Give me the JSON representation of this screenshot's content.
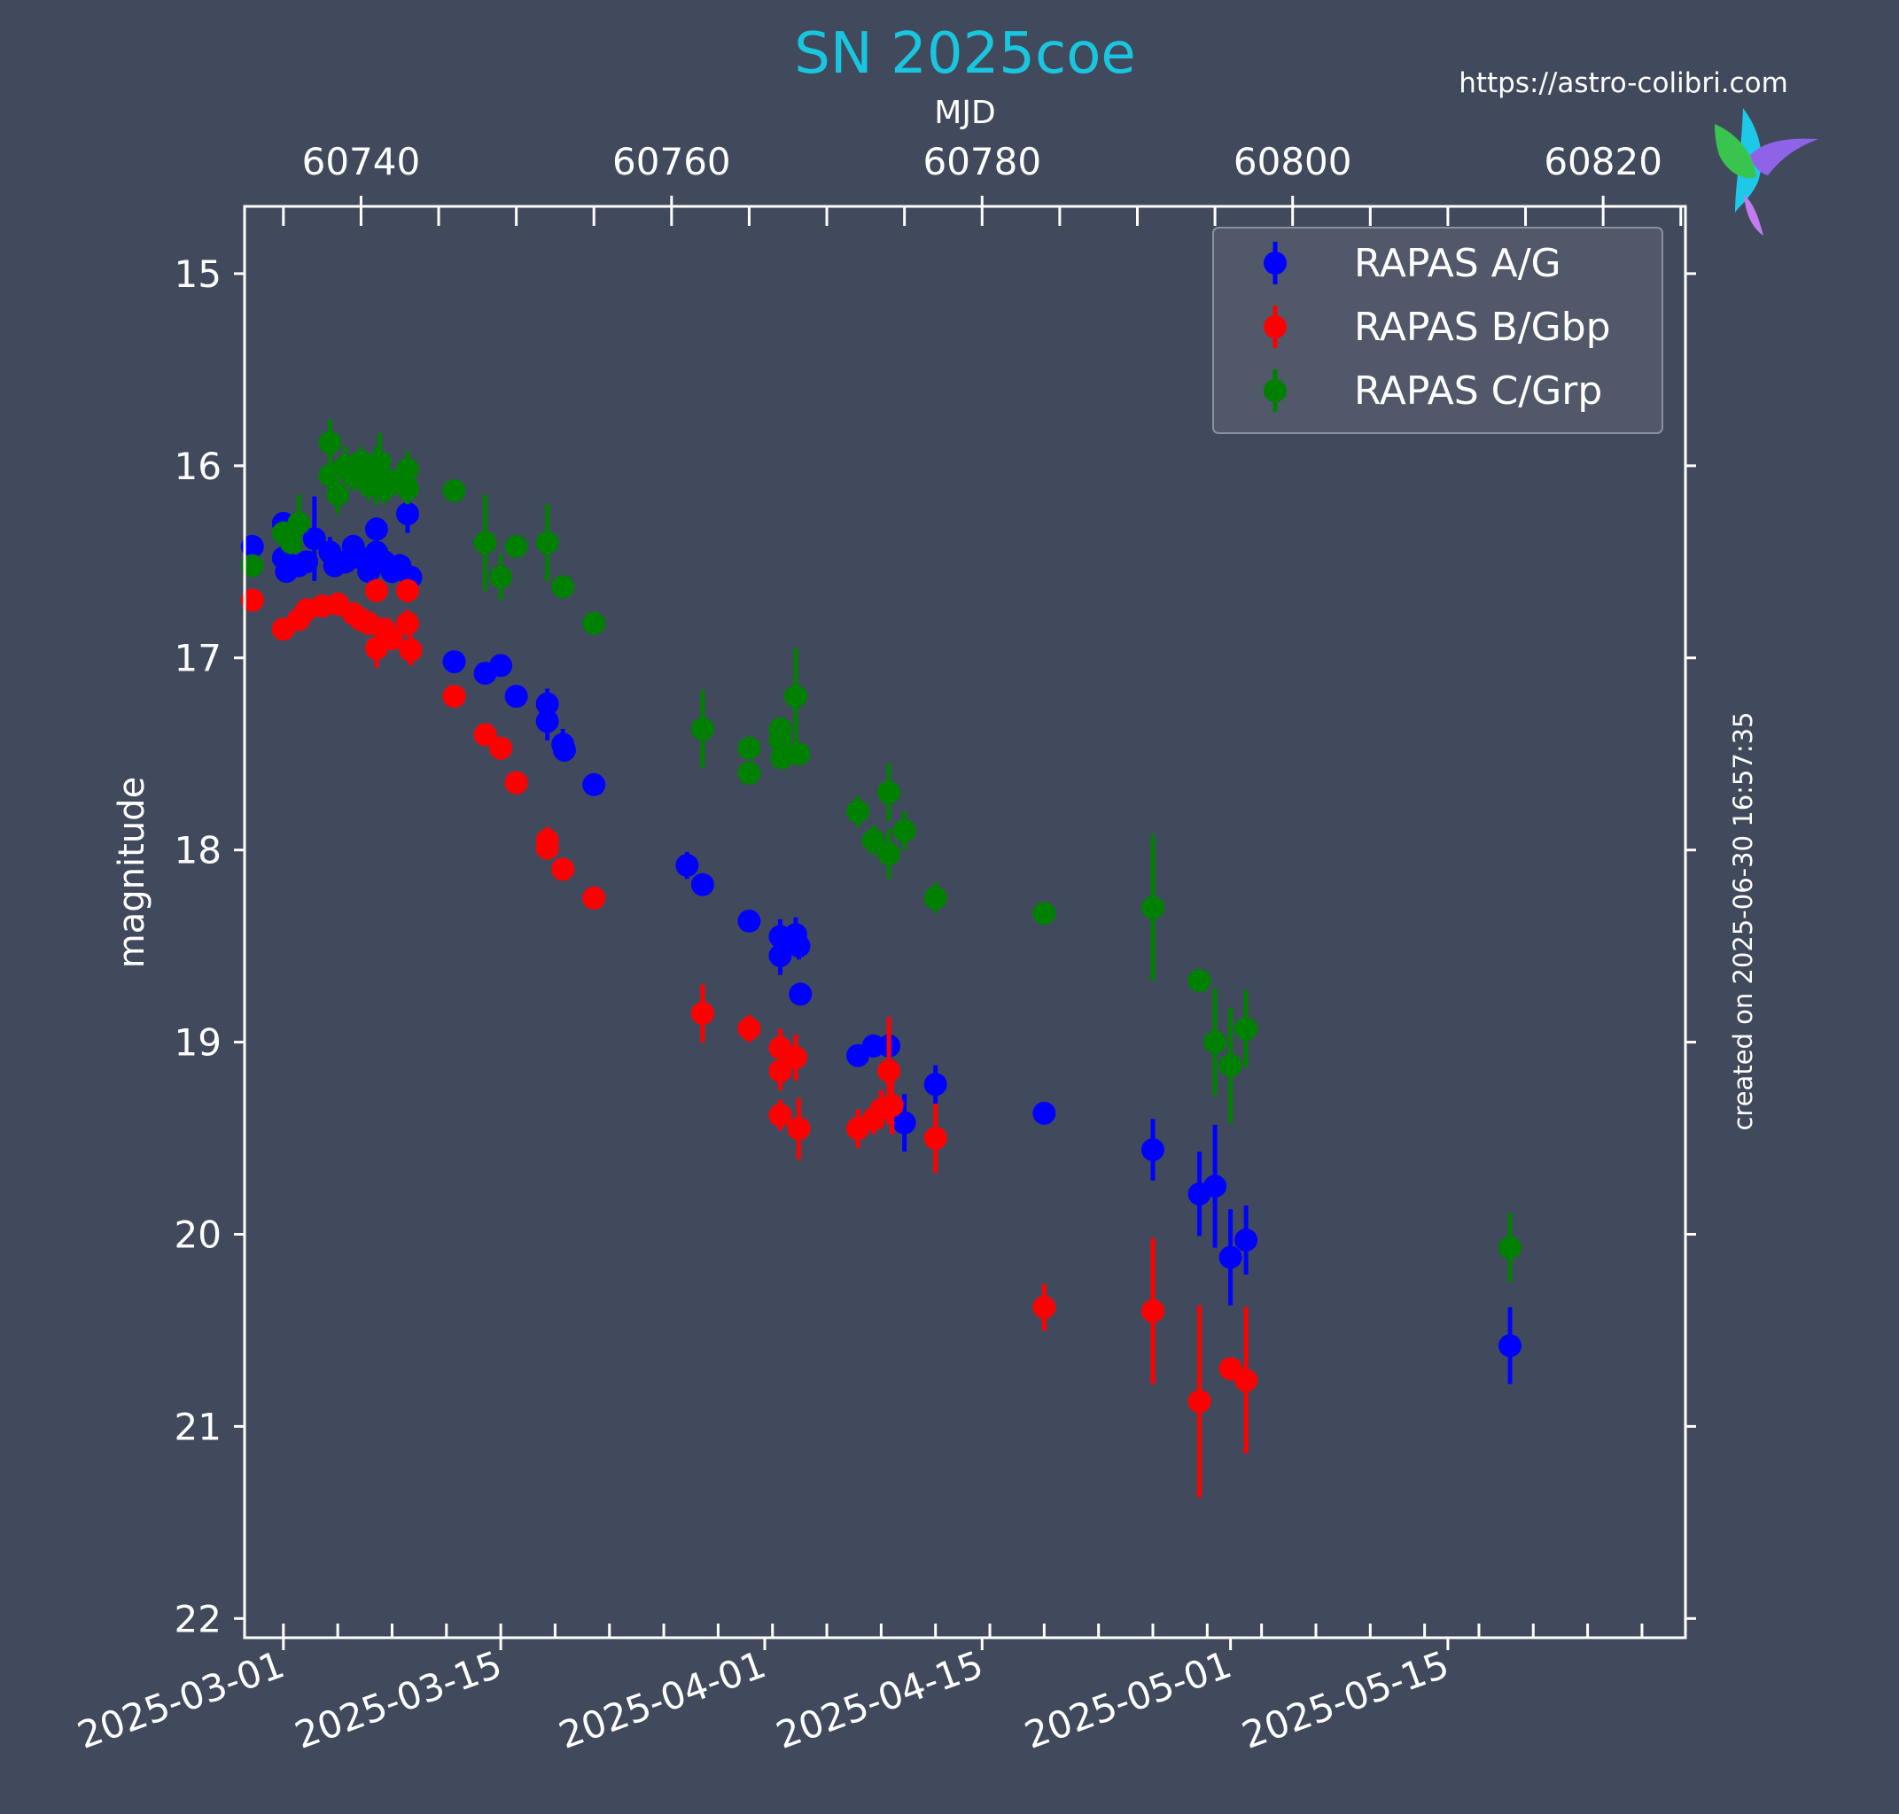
{
  "chart_data": {
    "type": "scatter",
    "title": "SN 2025coe",
    "url_label": "https://astro-colibri.com",
    "created_label": "created on 2025-06-30 16:57:35",
    "ylabel": "magnitude",
    "top_axis_label": "MJD",
    "ylim": [
      14.65,
      22.1
    ],
    "y_inverted": true,
    "y_ticks": [
      15,
      16,
      17,
      18,
      19,
      20,
      21,
      22
    ],
    "x_range_mjd": [
      60732.5,
      60825.3
    ],
    "bottom_ticks": [
      {
        "mjd": 60735,
        "label": "2025-03-01"
      },
      {
        "mjd": 60749,
        "label": "2025-03-15"
      },
      {
        "mjd": 60766,
        "label": "2025-04-01"
      },
      {
        "mjd": 60780,
        "label": "2025-04-15"
      },
      {
        "mjd": 60796,
        "label": "2025-05-01"
      },
      {
        "mjd": 60810,
        "label": "2025-05-15"
      }
    ],
    "top_ticks": [
      60740,
      60760,
      60780,
      60800,
      60820
    ],
    "legend_position": "top-right",
    "colors": {
      "background": "#414a5d",
      "title": "#19c6e0",
      "text": "#ffffff",
      "legend_bg": "#525a6b",
      "legend_border": "#8a909c"
    },
    "series": [
      {
        "name": "RAPAS A/G",
        "color": "#0000ff",
        "points": [
          [
            60733.0,
            16.42,
            0.04
          ],
          [
            60735.0,
            16.3,
            0.05
          ],
          [
            60735.0,
            16.48,
            0.05
          ],
          [
            60735.2,
            16.55,
            0.05
          ],
          [
            60736.0,
            16.52,
            0.05
          ],
          [
            60736.5,
            16.5,
            0.05
          ],
          [
            60737.0,
            16.38,
            0.22
          ],
          [
            60738.0,
            16.45,
            0.08
          ],
          [
            60738.3,
            16.52,
            0.06
          ],
          [
            60739.0,
            16.5,
            0.06
          ],
          [
            60739.5,
            16.42,
            0.06
          ],
          [
            60740.0,
            16.48,
            0.06
          ],
          [
            60740.5,
            16.55,
            0.06
          ],
          [
            60741.0,
            16.45,
            0.06
          ],
          [
            60741.0,
            16.33,
            0.06
          ],
          [
            60741.5,
            16.5,
            0.06
          ],
          [
            60742.0,
            16.55,
            0.06
          ],
          [
            60742.5,
            16.52,
            0.06
          ],
          [
            60743.0,
            16.25,
            0.1
          ],
          [
            60743.2,
            16.58,
            0.06
          ],
          [
            60746.0,
            17.02,
            0.04
          ],
          [
            60748.0,
            17.08,
            0.04
          ],
          [
            60749.0,
            17.04,
            0.04
          ],
          [
            60750.0,
            17.2,
            0.05
          ],
          [
            60752.0,
            17.24,
            0.08
          ],
          [
            60752.0,
            17.33,
            0.1
          ],
          [
            60753.0,
            17.45,
            0.08
          ],
          [
            60753.1,
            17.48,
            0.06
          ],
          [
            60755.0,
            17.66,
            0.05
          ],
          [
            60761.0,
            18.08,
            0.07
          ],
          [
            60762.0,
            18.18,
            0.05
          ],
          [
            60765.0,
            18.37,
            0.05
          ],
          [
            60767.0,
            18.45,
            0.09
          ],
          [
            60767.0,
            18.55,
            0.1
          ],
          [
            60768.0,
            18.44,
            0.09
          ],
          [
            60768.2,
            18.5,
            0.07
          ],
          [
            60768.3,
            18.75,
            0.05
          ],
          [
            60772.0,
            19.07,
            0.05
          ],
          [
            60773.0,
            19.02,
            0.06
          ],
          [
            60774.0,
            19.02,
            0.05
          ],
          [
            60775.0,
            19.42,
            0.15
          ],
          [
            60777.0,
            19.22,
            0.1
          ],
          [
            60784.0,
            19.37,
            0.05
          ],
          [
            60791.0,
            19.56,
            0.16
          ],
          [
            60794.0,
            19.79,
            0.22
          ],
          [
            60795.0,
            19.75,
            0.32
          ],
          [
            60796.0,
            20.12,
            0.25
          ],
          [
            60797.0,
            20.03,
            0.18
          ],
          [
            60814.0,
            20.58,
            0.2
          ]
        ]
      },
      {
        "name": "RAPAS B/Gbp",
        "color": "#ff0000",
        "points": [
          [
            60733.0,
            16.7,
            0.04
          ],
          [
            60735.0,
            16.85,
            0.05
          ],
          [
            60736.0,
            16.8,
            0.05
          ],
          [
            60736.5,
            16.75,
            0.05
          ],
          [
            60737.5,
            16.73,
            0.05
          ],
          [
            60738.5,
            16.72,
            0.06
          ],
          [
            60739.5,
            16.77,
            0.06
          ],
          [
            60740.0,
            16.8,
            0.06
          ],
          [
            60740.5,
            16.82,
            0.06
          ],
          [
            60741.0,
            16.65,
            0.06
          ],
          [
            60741.0,
            16.95,
            0.1
          ],
          [
            60741.5,
            16.85,
            0.06
          ],
          [
            60742.0,
            16.9,
            0.06
          ],
          [
            60743.0,
            16.65,
            0.06
          ],
          [
            60743.0,
            16.82,
            0.07
          ],
          [
            60743.2,
            16.96,
            0.08
          ],
          [
            60746.0,
            17.2,
            0.04
          ],
          [
            60748.0,
            17.4,
            0.05
          ],
          [
            60749.0,
            17.47,
            0.05
          ],
          [
            60750.0,
            17.65,
            0.05
          ],
          [
            60752.0,
            17.95,
            0.07
          ],
          [
            60752.0,
            17.99,
            0.05
          ],
          [
            60753.0,
            18.1,
            0.05
          ],
          [
            60755.0,
            18.25,
            0.05
          ],
          [
            60762.0,
            18.85,
            0.15
          ],
          [
            60765.0,
            18.93,
            0.07
          ],
          [
            60767.0,
            19.03,
            0.1
          ],
          [
            60767.0,
            19.15,
            0.1
          ],
          [
            60767.0,
            19.38,
            0.08
          ],
          [
            60768.0,
            19.08,
            0.12
          ],
          [
            60768.2,
            19.45,
            0.16
          ],
          [
            60772.0,
            19.45,
            0.1
          ],
          [
            60773.0,
            19.4,
            0.08
          ],
          [
            60773.5,
            19.35,
            0.1
          ],
          [
            60774.0,
            19.15,
            0.28
          ],
          [
            60774.2,
            19.33,
            0.15
          ],
          [
            60777.0,
            19.5,
            0.18
          ],
          [
            60784.0,
            20.38,
            0.12
          ],
          [
            60791.0,
            20.4,
            0.38
          ],
          [
            60794.0,
            20.87,
            0.5
          ],
          [
            60796.0,
            20.7,
            0.06
          ],
          [
            60797.0,
            20.76,
            0.38
          ]
        ]
      },
      {
        "name": "RAPAS C/Grp",
        "color": "#008000",
        "points": [
          [
            60733.0,
            16.52,
            0.05
          ],
          [
            60735.0,
            16.35,
            0.06
          ],
          [
            60735.5,
            16.4,
            0.06
          ],
          [
            60736.0,
            16.3,
            0.15
          ],
          [
            60738.0,
            15.88,
            0.12
          ],
          [
            60738.0,
            16.05,
            0.12
          ],
          [
            60738.5,
            16.15,
            0.1
          ],
          [
            60739.0,
            16.0,
            0.1
          ],
          [
            60739.5,
            16.05,
            0.08
          ],
          [
            60740.0,
            15.98,
            0.08
          ],
          [
            60740.5,
            16.1,
            0.08
          ],
          [
            60741.0,
            16.05,
            0.15
          ],
          [
            60741.2,
            15.98,
            0.15
          ],
          [
            60741.5,
            16.12,
            0.08
          ],
          [
            60742.0,
            16.08,
            0.06
          ],
          [
            60743.0,
            16.02,
            0.1
          ],
          [
            60743.0,
            16.12,
            0.08
          ],
          [
            60746.0,
            16.13,
            0.05
          ],
          [
            60748.0,
            16.4,
            0.25
          ],
          [
            60749.0,
            16.58,
            0.12
          ],
          [
            60750.0,
            16.42,
            0.06
          ],
          [
            60752.0,
            16.4,
            0.2
          ],
          [
            60753.0,
            16.63,
            0.05
          ],
          [
            60755.0,
            16.82,
            0.05
          ],
          [
            60762.0,
            17.37,
            0.2
          ],
          [
            60765.0,
            17.47,
            0.06
          ],
          [
            60765.0,
            17.6,
            0.05
          ],
          [
            60767.0,
            17.37,
            0.06
          ],
          [
            60767.0,
            17.43,
            0.08
          ],
          [
            60767.1,
            17.52,
            0.06
          ],
          [
            60768.0,
            17.2,
            0.25
          ],
          [
            60768.2,
            17.5,
            0.06
          ],
          [
            60772.0,
            17.8,
            0.08
          ],
          [
            60773.0,
            17.95,
            0.08
          ],
          [
            60774.0,
            17.7,
            0.15
          ],
          [
            60774.0,
            18.02,
            0.13
          ],
          [
            60775.0,
            17.9,
            0.1
          ],
          [
            60777.0,
            18.25,
            0.08
          ],
          [
            60784.0,
            18.33,
            0.05
          ],
          [
            60791.0,
            18.3,
            0.38
          ],
          [
            60794.0,
            18.68,
            0.05
          ],
          [
            60795.0,
            19.0,
            0.28
          ],
          [
            60796.0,
            19.12,
            0.3
          ],
          [
            60797.0,
            18.93,
            0.2
          ],
          [
            60814.0,
            20.07,
            0.18
          ]
        ]
      }
    ]
  }
}
